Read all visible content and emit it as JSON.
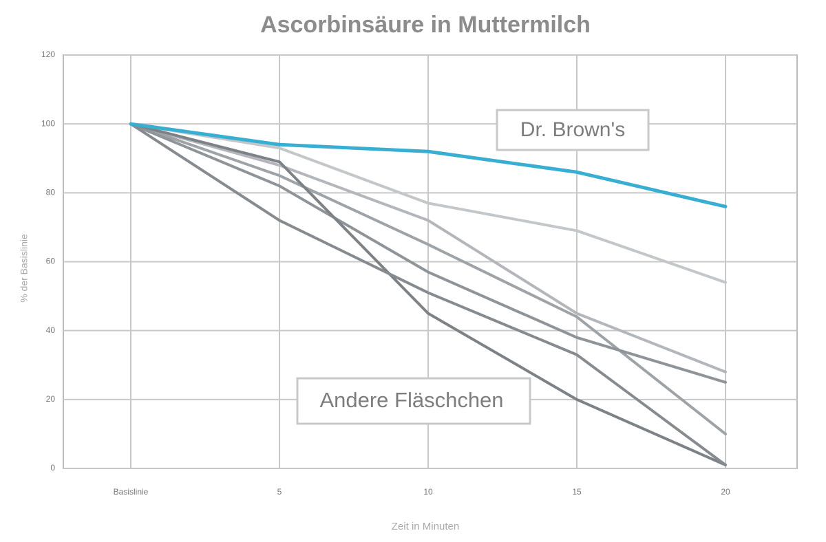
{
  "chart_data": {
    "type": "line",
    "title": "Ascorbinsäure in Muttermilch",
    "x_label": "Zeit in Minuten",
    "y_label": "% der Basislinie",
    "categories": [
      "Basislinie",
      "5",
      "10",
      "15",
      "20"
    ],
    "ylim": [
      0,
      120
    ],
    "yticks": [
      0,
      20,
      40,
      60,
      80,
      100,
      120
    ],
    "grid": true,
    "annotations": [
      "Andere Fläschchen"
    ],
    "series": [
      {
        "color": "#c4c7ca",
        "values": [
          100,
          93,
          77,
          69,
          54
        ]
      },
      {
        "color": "#b3b7bb",
        "values": [
          100,
          88,
          72,
          45,
          28
        ]
      },
      {
        "color": "#9ea3a8",
        "values": [
          100,
          85,
          65,
          44,
          10
        ]
      },
      {
        "color": "#8f9499",
        "values": [
          100,
          82,
          57,
          38,
          25
        ]
      },
      {
        "color": "#7d8286",
        "values": [
          100,
          89,
          45,
          20,
          1
        ]
      },
      {
        "color": "#868b90",
        "values": [
          100,
          72,
          51,
          33,
          1
        ]
      },
      {
        "name": "Dr. Brown's",
        "color": "#38afd2",
        "values": [
          100,
          94,
          92,
          86,
          76
        ]
      }
    ]
  }
}
